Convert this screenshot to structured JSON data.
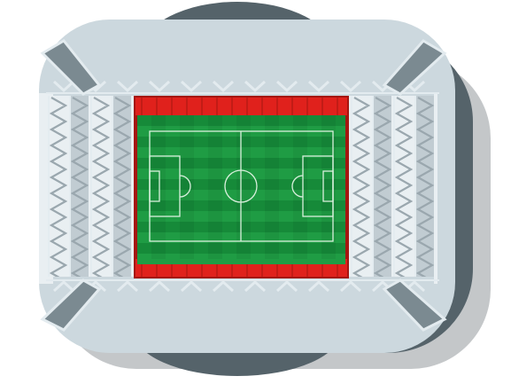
{
  "illustration": {
    "subject": "stadium-icon",
    "view": "top-down",
    "colors": {
      "background": "#ffffff",
      "shadow": "#c4c7c9",
      "roof_side": "#55636a",
      "roof_top": "#ccd8de",
      "roof_edge": "#e3ebef",
      "stand_light": "#e9eff2",
      "stand_mid": "#c1ccd2",
      "stand_dark": "#9aa7ae",
      "truss": "#7b8a91",
      "seats_red": "#e0211c",
      "seats_dark": "#a51610",
      "pitch_dark": "#168a39",
      "pitch_light": "#1f9c44",
      "pitch_lines": "#d9f0dd"
    }
  }
}
